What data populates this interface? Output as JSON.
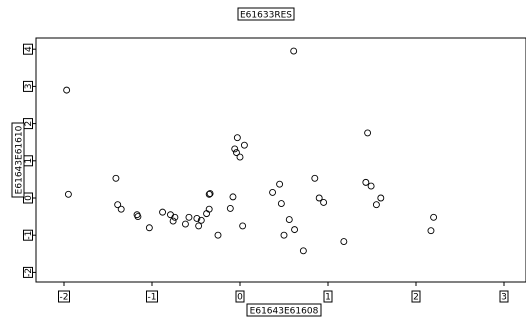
{
  "chart_data": {
    "type": "scatter",
    "title": "E61633RES",
    "xlabel": "E61643E61608",
    "ylabel": "E61643E61610",
    "xlim": [
      -2.3,
      3.2
    ],
    "ylim": [
      -2.3,
      4.25
    ],
    "x_ticks": [
      -2,
      -1,
      0,
      1,
      2,
      3
    ],
    "y_ticks": [
      -2,
      -1,
      0,
      1,
      2,
      3,
      4
    ],
    "grid": false,
    "legend": "none",
    "points": [
      {
        "x": -1.97,
        "y": 2.9
      },
      {
        "x": -1.95,
        "y": 0.1
      },
      {
        "x": -1.41,
        "y": 0.53
      },
      {
        "x": -1.39,
        "y": -0.18
      },
      {
        "x": -1.35,
        "y": -0.3
      },
      {
        "x": -1.17,
        "y": -0.45
      },
      {
        "x": -1.16,
        "y": -0.5
      },
      {
        "x": -1.03,
        "y": -0.8
      },
      {
        "x": -0.88,
        "y": -0.38
      },
      {
        "x": -0.79,
        "y": -0.45
      },
      {
        "x": -0.76,
        "y": -0.62
      },
      {
        "x": -0.74,
        "y": -0.52
      },
      {
        "x": -0.62,
        "y": -0.7
      },
      {
        "x": -0.58,
        "y": -0.52
      },
      {
        "x": -0.49,
        "y": -0.55
      },
      {
        "x": -0.47,
        "y": -0.75
      },
      {
        "x": -0.44,
        "y": -0.6
      },
      {
        "x": -0.38,
        "y": -0.42
      },
      {
        "x": -0.35,
        "y": -0.3
      },
      {
        "x": -0.35,
        "y": 0.1
      },
      {
        "x": -0.34,
        "y": 0.12
      },
      {
        "x": -0.25,
        "y": -1.0
      },
      {
        "x": -0.11,
        "y": -0.28
      },
      {
        "x": -0.08,
        "y": 0.03
      },
      {
        "x": -0.06,
        "y": 1.32
      },
      {
        "x": -0.04,
        "y": 1.22
      },
      {
        "x": -0.03,
        "y": 1.62
      },
      {
        "x": 0.0,
        "y": 1.1
      },
      {
        "x": 0.03,
        "y": -0.75
      },
      {
        "x": 0.05,
        "y": 1.42
      },
      {
        "x": 0.37,
        "y": 0.15
      },
      {
        "x": 0.45,
        "y": 0.37
      },
      {
        "x": 0.47,
        "y": -0.15
      },
      {
        "x": 0.5,
        "y": -1.0
      },
      {
        "x": 0.56,
        "y": -0.58
      },
      {
        "x": 0.61,
        "y": 3.95
      },
      {
        "x": 0.62,
        "y": -0.85
      },
      {
        "x": 0.72,
        "y": -1.42
      },
      {
        "x": 0.85,
        "y": 0.53
      },
      {
        "x": 0.9,
        "y": 0.0
      },
      {
        "x": 0.95,
        "y": -0.12
      },
      {
        "x": 1.18,
        "y": -1.17
      },
      {
        "x": 1.43,
        "y": 0.42
      },
      {
        "x": 1.45,
        "y": 1.75
      },
      {
        "x": 1.49,
        "y": 0.32
      },
      {
        "x": 1.55,
        "y": -0.18
      },
      {
        "x": 1.6,
        "y": 0.0
      },
      {
        "x": 2.17,
        "y": -0.88
      },
      {
        "x": 2.2,
        "y": -0.52
      }
    ]
  }
}
